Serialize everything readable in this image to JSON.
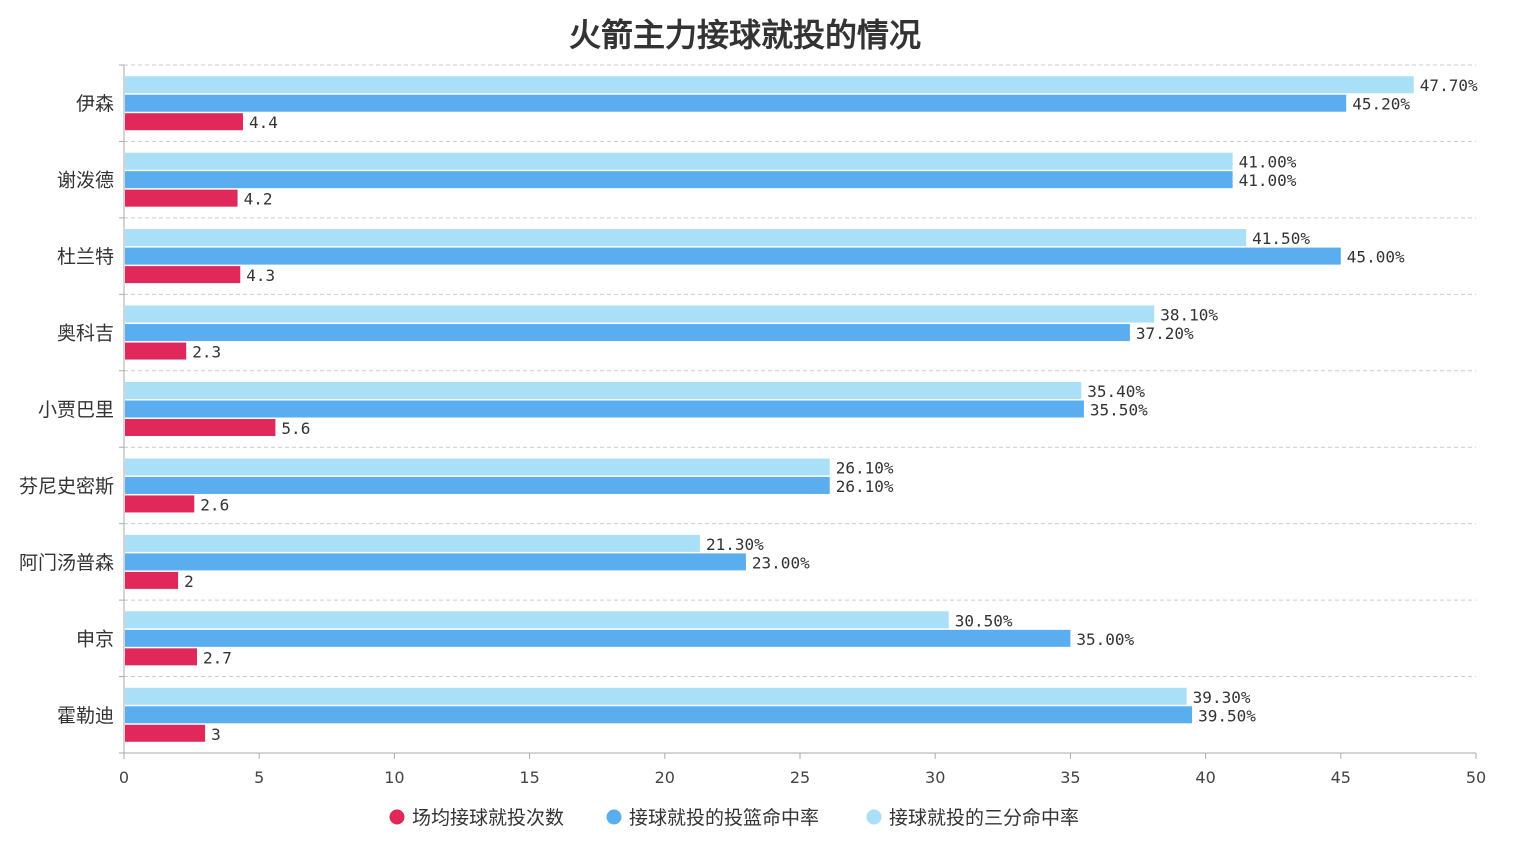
{
  "chart_data": {
    "type": "bar",
    "orientation": "horizontal",
    "title": "火箭主力接球就投的情况",
    "xlabel": "",
    "ylabel": "",
    "xlim": [
      0,
      50
    ],
    "xticks": [
      0,
      5,
      10,
      15,
      20,
      25,
      30,
      35,
      40,
      45,
      50
    ],
    "grid": "horizontal-dashed",
    "legend_position": "bottom-center",
    "categories": [
      "伊森",
      "谢泼德",
      "杜兰特",
      "奥科吉",
      "小贾巴里",
      "芬尼史密斯",
      "阿门汤普森",
      "申京",
      "霍勒迪"
    ],
    "series": [
      {
        "name": "场均接球就投次数",
        "color": "#e0285a",
        "values": [
          4.4,
          4.2,
          4.3,
          2.3,
          5.6,
          2.6,
          2,
          2.7,
          3
        ],
        "labels": [
          "4.4",
          "4.2",
          "4.3",
          "2.3",
          "5.6",
          "2.6",
          "2",
          "2.7",
          "3"
        ]
      },
      {
        "name": "接球就投的投篮命中率",
        "color": "#5aaef0",
        "values": [
          45.2,
          41.0,
          45.0,
          37.2,
          35.5,
          26.1,
          23.0,
          35.0,
          39.5
        ],
        "labels": [
          "45.20%",
          "41.00%",
          "45.00%",
          "37.20%",
          "35.50%",
          "26.10%",
          "23.00%",
          "35.00%",
          "39.50%"
        ]
      },
      {
        "name": "接球就投的三分命中率",
        "color": "#aadff8",
        "values": [
          47.7,
          41.0,
          41.5,
          38.1,
          35.4,
          26.1,
          21.3,
          30.5,
          39.3
        ],
        "labels": [
          "47.70%",
          "41.00%",
          "41.50%",
          "38.10%",
          "35.40%",
          "26.10%",
          "21.30%",
          "30.50%",
          "39.30%"
        ]
      }
    ]
  }
}
